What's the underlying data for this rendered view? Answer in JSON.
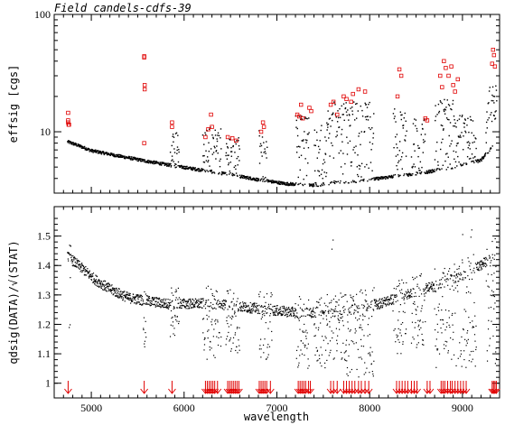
{
  "chart_data": [
    {
      "type": "scatter",
      "title": "Field candels-cdfs-39",
      "xlabel": "wavelength",
      "ylabel": "effsig [cgs]",
      "xlim": [
        4600,
        9400
      ],
      "ylim": [
        3,
        100
      ],
      "yscale": "log",
      "y_ticks": [
        10,
        100
      ],
      "y_tick_labels": [
        "10",
        "100"
      ],
      "x_ticks": [
        5000,
        6000,
        7000,
        8000,
        9000
      ],
      "series": [
        {
          "color": "#000000",
          "marker": "dot",
          "baseline": [
            [
              4750,
              8.2
            ],
            [
              5000,
              6.9
            ],
            [
              5300,
              6.2
            ],
            [
              5600,
              5.6
            ],
            [
              5900,
              5.1
            ],
            [
              6200,
              4.7
            ],
            [
              6500,
              4.3
            ],
            [
              6800,
              3.9
            ],
            [
              7100,
              3.6
            ],
            [
              7400,
              3.5
            ],
            [
              7700,
              3.7
            ],
            [
              8000,
              3.9
            ],
            [
              8300,
              4.2
            ],
            [
              8600,
              4.5
            ],
            [
              8900,
              5.0
            ],
            [
              9200,
              5.7
            ],
            [
              9330,
              7.5
            ],
            [
              9350,
              11.0
            ],
            [
              9370,
              18.0
            ]
          ],
          "noise_bands": [
            [
              5850,
              5950,
              10
            ],
            [
              6200,
              6400,
              11
            ],
            [
              6450,
              6600,
              9
            ],
            [
              6800,
              6900,
              11
            ],
            [
              7200,
              7350,
              14
            ],
            [
              7400,
              7550,
              12
            ],
            [
              7550,
              7700,
              18
            ],
            [
              7700,
              8050,
              18
            ],
            [
              8250,
              8400,
              16
            ],
            [
              8450,
              8600,
              13
            ],
            [
              8700,
              8900,
              19
            ],
            [
              8900,
              9150,
              14
            ],
            [
              9250,
              9370,
              25
            ]
          ]
        },
        {
          "color": "#e00000",
          "marker": "open-square",
          "points": [
            [
              4750,
              14.5
            ],
            [
              4750,
              12.5
            ],
            [
              4750,
              12.0
            ],
            [
              4755,
              11.5
            ],
            [
              4760,
              11.5
            ],
            [
              5570,
              44
            ],
            [
              5570,
              43
            ],
            [
              5575,
              25
            ],
            [
              5575,
              23
            ],
            [
              5570,
              8.0
            ],
            [
              5870,
              12
            ],
            [
              5870,
              11
            ],
            [
              6230,
              9.0
            ],
            [
              6260,
              10.5
            ],
            [
              6290,
              14
            ],
            [
              6300,
              11
            ],
            [
              6470,
              9.0
            ],
            [
              6520,
              8.8
            ],
            [
              6560,
              8.4
            ],
            [
              6830,
              10
            ],
            [
              6850,
              12
            ],
            [
              6860,
              11
            ],
            [
              7220,
              14
            ],
            [
              7240,
              13.5
            ],
            [
              7260,
              17
            ],
            [
              7280,
              13
            ],
            [
              7350,
              16
            ],
            [
              7370,
              15
            ],
            [
              7580,
              17
            ],
            [
              7610,
              18
            ],
            [
              7650,
              14
            ],
            [
              7720,
              20
            ],
            [
              7750,
              19
            ],
            [
              7800,
              18
            ],
            [
              7820,
              21
            ],
            [
              7880,
              23
            ],
            [
              7950,
              22
            ],
            [
              8300,
              20
            ],
            [
              8320,
              34
            ],
            [
              8340,
              30
            ],
            [
              8600,
              13
            ],
            [
              8620,
              12.5
            ],
            [
              8760,
              30
            ],
            [
              8780,
              24
            ],
            [
              8800,
              40
            ],
            [
              8820,
              35
            ],
            [
              8850,
              30
            ],
            [
              8880,
              36
            ],
            [
              8900,
              25
            ],
            [
              8920,
              22
            ],
            [
              8950,
              28
            ],
            [
              9320,
              38
            ],
            [
              9330,
              50
            ],
            [
              9340,
              45
            ],
            [
              9350,
              36
            ]
          ]
        }
      ]
    },
    {
      "type": "scatter",
      "xlabel": "wavelength",
      "ylabel": "qdsig(DATA)/√(STAT)",
      "xlim": [
        4600,
        9400
      ],
      "ylim": [
        0.95,
        1.6
      ],
      "y_ticks": [
        1.0,
        1.1,
        1.2,
        1.3,
        1.4,
        1.5
      ],
      "y_tick_labels": [
        "1",
        "1.1",
        "1.2",
        "1.3",
        "1.4",
        "1.5"
      ],
      "x_ticks": [
        5000,
        6000,
        7000,
        8000,
        9000
      ],
      "x_tick_labels": [
        "5000",
        "6000",
        "7000",
        "8000",
        "9000"
      ],
      "series": [
        {
          "color": "#000000",
          "marker": "dot",
          "trend": [
            [
              4750,
              1.43
            ],
            [
              4900,
              1.39
            ],
            [
              5050,
              1.35
            ],
            [
              5200,
              1.32
            ],
            [
              5400,
              1.29
            ],
            [
              5600,
              1.28
            ],
            [
              5800,
              1.27
            ],
            [
              6000,
              1.27
            ],
            [
              6300,
              1.27
            ],
            [
              6600,
              1.26
            ],
            [
              6900,
              1.25
            ],
            [
              7200,
              1.24
            ],
            [
              7500,
              1.24
            ],
            [
              7800,
              1.25
            ],
            [
              8100,
              1.27
            ],
            [
              8400,
              1.3
            ],
            [
              8600,
              1.32
            ],
            [
              8800,
              1.34
            ],
            [
              9000,
              1.37
            ],
            [
              9200,
              1.4
            ],
            [
              9370,
              1.44
            ]
          ],
          "dip_bands": [
            [
              4760,
              4780,
              1.1
            ],
            [
              5560,
              5590,
              1.12
            ],
            [
              5850,
              5950,
              1.15
            ],
            [
              6200,
              6400,
              1.08
            ],
            [
              6450,
              6600,
              1.1
            ],
            [
              6800,
              6950,
              1.08
            ],
            [
              7200,
              7350,
              1.05
            ],
            [
              7400,
              7550,
              1.05
            ],
            [
              7550,
              7700,
              1.08
            ],
            [
              7700,
              8050,
              1.02
            ],
            [
              8250,
              8400,
              1.1
            ],
            [
              8450,
              8600,
              1.12
            ],
            [
              8700,
              8900,
              1.05
            ],
            [
              8900,
              9150,
              1.05
            ],
            [
              9250,
              9370,
              1.05
            ]
          ]
        }
      ],
      "arrows": {
        "color": "#e00000",
        "wavelengths": [
          4750,
          5570,
          5870,
          6230,
          6250,
          6270,
          6290,
          6310,
          6330,
          6360,
          6470,
          6490,
          6510,
          6530,
          6550,
          6570,
          6590,
          6810,
          6830,
          6850,
          6870,
          6890,
          6930,
          7230,
          7250,
          7270,
          7290,
          7310,
          7340,
          7360,
          7580,
          7610,
          7650,
          7720,
          7750,
          7780,
          7810,
          7840,
          7880,
          7910,
          7950,
          7990,
          8290,
          8320,
          8350,
          8380,
          8410,
          8450,
          8480,
          8510,
          8620,
          8650,
          8770,
          8790,
          8810,
          8840,
          8870,
          8890,
          8920,
          8950,
          8980,
          9010,
          9040,
          9320,
          9335,
          9350,
          9365
        ]
      }
    }
  ]
}
